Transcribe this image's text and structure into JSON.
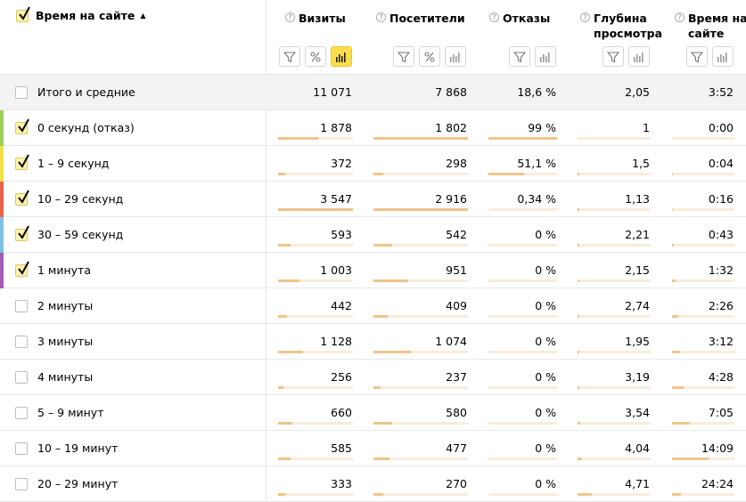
{
  "header": {
    "dimension": {
      "label": "Время на сайте",
      "sort_arrow": "▲"
    },
    "metrics": [
      {
        "key": "visits",
        "label": "Визиты"
      },
      {
        "key": "visitors",
        "label": "Посетители"
      },
      {
        "key": "bounce",
        "label": "Отказы"
      },
      {
        "key": "depth",
        "label": "Глубина просмотра"
      },
      {
        "key": "time",
        "label": "Время на сайте"
      }
    ],
    "help_glyph": "?"
  },
  "total": {
    "label": "Итого и средние",
    "values": [
      "11 071",
      "7 868",
      "18,6 %",
      "2,05",
      "3:52"
    ]
  },
  "rows": [
    {
      "label": "0 секунд (отказ)",
      "checked": true,
      "color": "#9ccf5a",
      "values": [
        "1 878",
        "1 802",
        "99 %",
        "1",
        "0:00"
      ],
      "bars": [
        0.53,
        1.0,
        1.0,
        0.0,
        0.0
      ]
    },
    {
      "label": "1 – 9 секунд",
      "checked": true,
      "color": "#f5e04a",
      "values": [
        "372",
        "298",
        "51,1 %",
        "1,5",
        "0:04"
      ],
      "bars": [
        0.1,
        0.1,
        0.52,
        0.02,
        0.02
      ]
    },
    {
      "label": "10 – 29 секунд",
      "checked": true,
      "color": "#e8624a",
      "values": [
        "3 547",
        "2 916",
        "0,34 %",
        "1,13",
        "0:16"
      ],
      "bars": [
        1.0,
        1.0,
        0.0,
        0.02,
        0.02
      ]
    },
    {
      "label": "30 – 59 секунд",
      "checked": true,
      "color": "#7ec0df",
      "values": [
        "593",
        "542",
        "0 %",
        "2,21",
        "0:43"
      ],
      "bars": [
        0.17,
        0.2,
        0.0,
        0.02,
        0.03
      ]
    },
    {
      "label": "1 минута",
      "checked": true,
      "color": "#a65bb5",
      "values": [
        "1 003",
        "951",
        "0 %",
        "2,15",
        "1:32"
      ],
      "bars": [
        0.29,
        0.37,
        0.0,
        0.02,
        0.06
      ]
    },
    {
      "label": "2 минуты",
      "checked": false,
      "color": "",
      "values": [
        "442",
        "409",
        "0 %",
        "2,74",
        "2:26"
      ],
      "bars": [
        0.12,
        0.15,
        0.0,
        0.03,
        0.1
      ]
    },
    {
      "label": "3 минуты",
      "checked": false,
      "color": "",
      "values": [
        "1 128",
        "1 074",
        "0 %",
        "1,95",
        "3:12"
      ],
      "bars": [
        0.33,
        0.4,
        0.0,
        0.02,
        0.13
      ]
    },
    {
      "label": "4 минуты",
      "checked": false,
      "color": "",
      "values": [
        "256",
        "237",
        "0 %",
        "3,19",
        "4:28"
      ],
      "bars": [
        0.07,
        0.08,
        0.0,
        0.03,
        0.18
      ]
    },
    {
      "label": "5 – 9 минут",
      "checked": false,
      "color": "",
      "values": [
        "660",
        "580",
        "0 %",
        "3,54",
        "7:05"
      ],
      "bars": [
        0.19,
        0.2,
        0.0,
        0.04,
        0.29
      ]
    },
    {
      "label": "10 – 19 минут",
      "checked": false,
      "color": "",
      "values": [
        "585",
        "477",
        "0 %",
        "4,04",
        "14:09"
      ],
      "bars": [
        0.17,
        0.17,
        0.0,
        0.05,
        0.58
      ]
    },
    {
      "label": "20 – 29 минут",
      "checked": false,
      "color": "",
      "values": [
        "333",
        "270",
        "0 %",
        "4,71",
        "24:24"
      ],
      "bars": [
        0.1,
        0.1,
        0.0,
        0.2,
        0.14
      ]
    }
  ]
}
